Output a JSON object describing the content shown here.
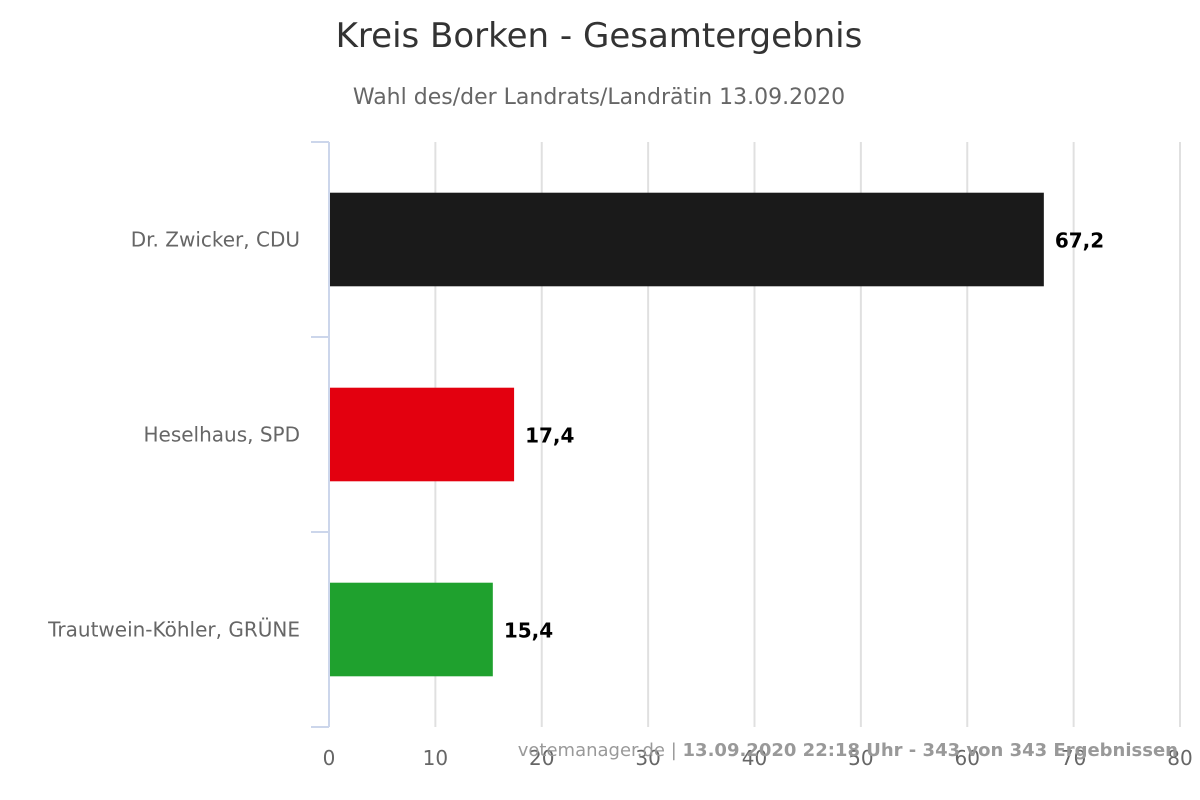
{
  "chart_data": {
    "type": "bar",
    "orientation": "horizontal",
    "title": "Kreis Borken - Gesamtergebnis",
    "subtitle": "Wahl des/der Landrats/Landrätin 13.09.2020",
    "categories": [
      "Dr. Zwicker, CDU",
      "Heselhaus, SPD",
      "Trautwein-Köhler, GRÜNE"
    ],
    "values": [
      67.2,
      17.4,
      15.4
    ],
    "value_labels": [
      "67,2",
      "17,4",
      "15,4"
    ],
    "colors": [
      "#1a1a1a",
      "#e3000f",
      "#1fa12e"
    ],
    "xlim": [
      0,
      80
    ],
    "x_ticks": [
      0,
      10,
      20,
      30,
      40,
      50,
      60,
      70,
      80
    ],
    "grid": true,
    "legend": "none"
  },
  "credits": {
    "source": "votemanager.de",
    "separator": " | ",
    "status": "13.09.2020 22:18 Uhr - 343 von 343 Ergebnissen"
  }
}
